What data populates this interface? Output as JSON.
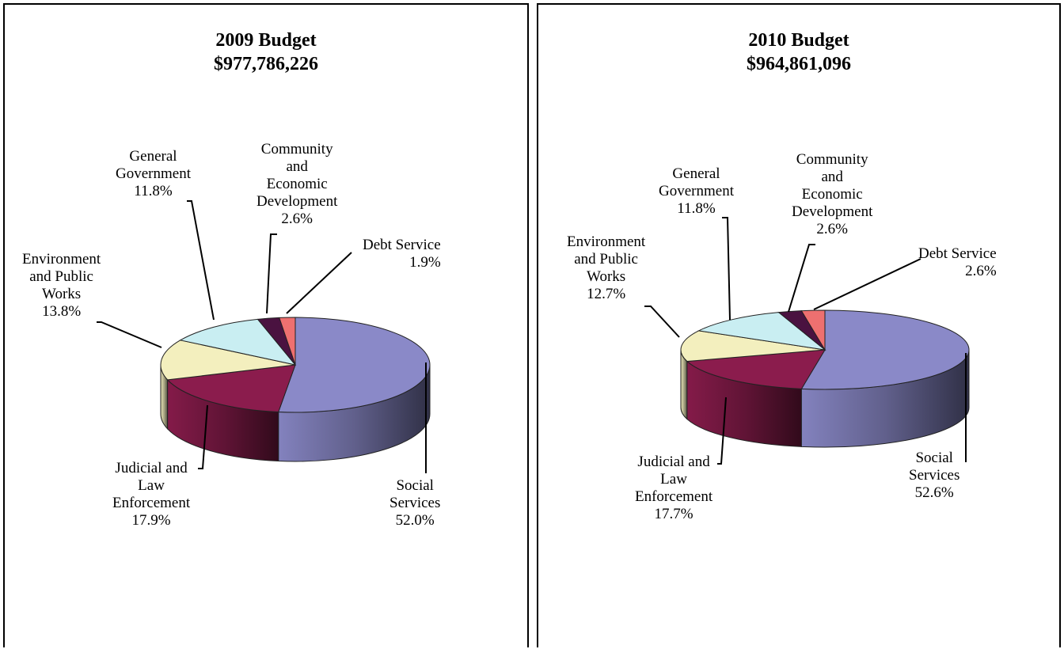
{
  "chart_data": [
    {
      "type": "pie",
      "style": "3d-exploded-depth",
      "title": "2009 Budget",
      "subtitle": "$977,786,226",
      "slices": [
        {
          "label": "Social Services",
          "value": 52.0,
          "value_label": "52.0%",
          "color": "#8a89c8"
        },
        {
          "label": "Judicial and Law Enforcement",
          "value": 17.9,
          "value_label": "17.9%",
          "color": "#8b1c4d"
        },
        {
          "label": "Environment and Public Works",
          "value": 13.8,
          "value_label": "13.8%",
          "color": "#f3efbe"
        },
        {
          "label": "General Government",
          "value": 11.8,
          "value_label": "11.8%",
          "color": "#c9eef2"
        },
        {
          "label": "Community and Economic Development",
          "value": 2.6,
          "value_label": "2.6%",
          "color": "#4a1240"
        },
        {
          "label": "Debt Service",
          "value": 1.9,
          "value_label": "1.9%",
          "color": "#ee7070"
        }
      ],
      "labels_text": {
        "social": [
          "Social",
          "Services"
        ],
        "judicial": [
          "Judicial and",
          "Law",
          "Enforcement"
        ],
        "environment": [
          "Environment",
          "and Public",
          "Works"
        ],
        "general": [
          "General",
          "Government"
        ],
        "community": [
          "Community",
          "and",
          "Economic",
          "Development"
        ],
        "debt": [
          "Debt Service"
        ]
      }
    },
    {
      "type": "pie",
      "style": "3d-exploded-depth",
      "title": "2010 Budget",
      "subtitle": "$964,861,096",
      "slices": [
        {
          "label": "Social Services",
          "value": 52.6,
          "value_label": "52.6%",
          "color": "#8a89c8"
        },
        {
          "label": "Judicial and Law Enforcement",
          "value": 17.7,
          "value_label": "17.7%",
          "color": "#8b1c4d"
        },
        {
          "label": "Environment and Public Works",
          "value": 12.7,
          "value_label": "12.7%",
          "color": "#f3efbe"
        },
        {
          "label": "General Government",
          "value": 11.8,
          "value_label": "11.8%",
          "color": "#c9eef2"
        },
        {
          "label": "Community and Economic Development",
          "value": 2.6,
          "value_label": "2.6%",
          "color": "#4a1240"
        },
        {
          "label": "Debt Service",
          "value": 2.6,
          "value_label": "2.6%",
          "color": "#ee7070"
        }
      ],
      "labels_text": {
        "social": [
          "Social",
          "Services"
        ],
        "judicial": [
          "Judicial and",
          "Law",
          "Enforcement"
        ],
        "environment": [
          "Environment",
          "and Public",
          "Works"
        ],
        "general": [
          "General",
          "Government"
        ],
        "community": [
          "Community",
          "and",
          "Economic",
          "Development"
        ],
        "debt": [
          "Debt Service"
        ]
      }
    }
  ]
}
